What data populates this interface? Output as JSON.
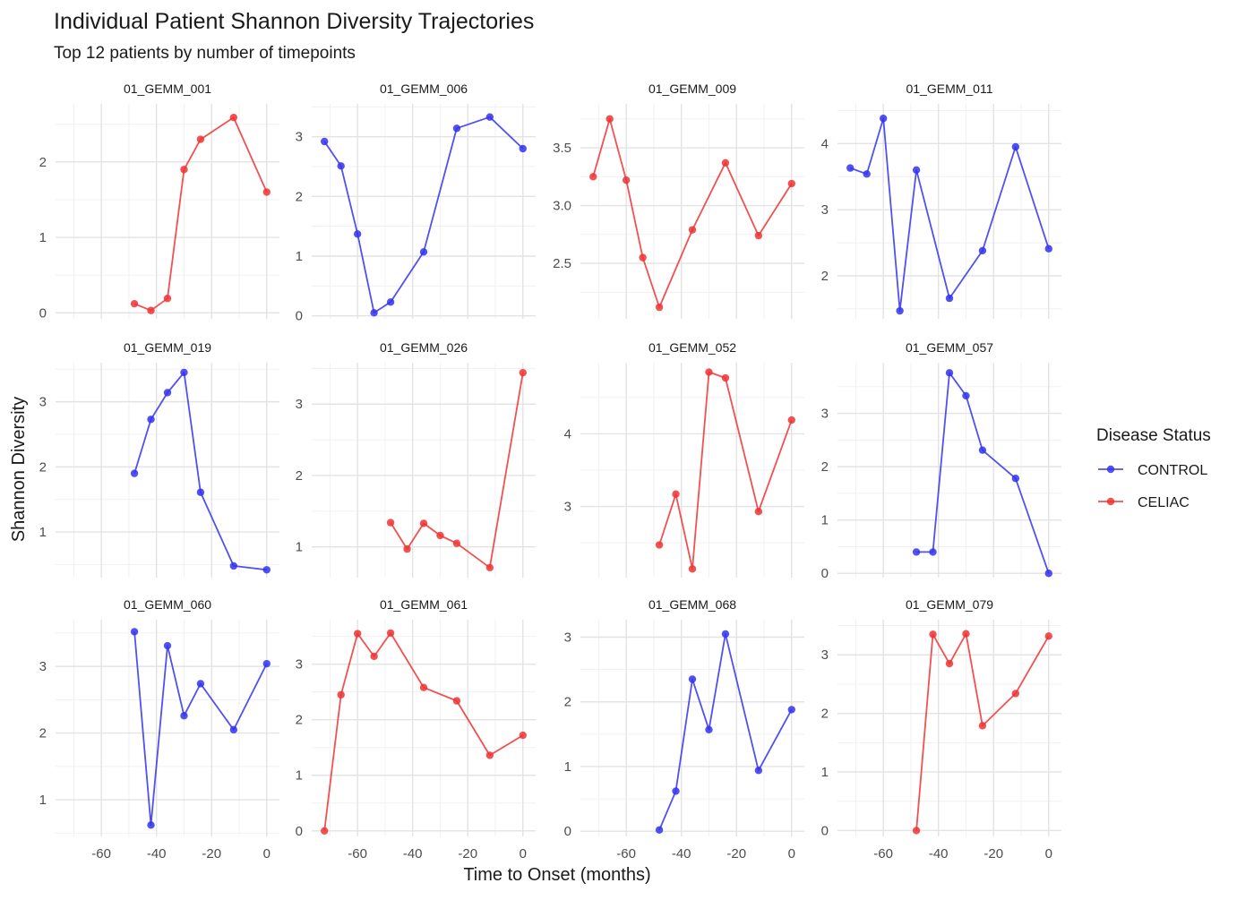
{
  "chart_data": {
    "type": "line",
    "title": "Individual Patient Shannon Diversity Trajectories",
    "subtitle": "Top 12 patients by number of timepoints",
    "xlabel": "Time to Onset (months)",
    "ylabel": "Shannon Diversity",
    "xlim": [
      -75,
      3
    ],
    "xticks": [
      -60,
      -40,
      -20,
      0
    ],
    "grid": true,
    "legend": {
      "title": "Disease Status",
      "position": "right",
      "entries": [
        {
          "label": "CONTROL",
          "color": "#3333ee"
        },
        {
          "label": "CELIAC",
          "color": "#ee3333"
        }
      ]
    },
    "panels": [
      {
        "name": "01_GEMM_001",
        "status": "CELIAC",
        "yticks": [
          0,
          1,
          2
        ],
        "ylim": [
          -0.08,
          2.77
        ],
        "x": [
          -48,
          -42,
          -36,
          -30,
          -24,
          -12,
          0
        ],
        "y": [
          0.12,
          0.03,
          0.19,
          1.9,
          2.3,
          2.59,
          1.6
        ]
      },
      {
        "name": "01_GEMM_006",
        "status": "CONTROL",
        "yticks": [
          0,
          1,
          2,
          3
        ],
        "ylim": [
          -0.05,
          3.55
        ],
        "x": [
          -72,
          -66,
          -60,
          -54,
          -48,
          -36,
          -24,
          -12,
          0
        ],
        "y": [
          2.92,
          2.51,
          1.37,
          0.05,
          0.23,
          1.07,
          3.14,
          3.33,
          2.8
        ]
      },
      {
        "name": "01_GEMM_009",
        "status": "CELIAC",
        "yticks": [
          2.5,
          3.0,
          3.5
        ],
        "ylim": [
          2.02,
          3.88
        ],
        "x": [
          -72,
          -66,
          -60,
          -54,
          -48,
          -36,
          -24,
          -12,
          0
        ],
        "y": [
          3.25,
          3.75,
          3.22,
          2.55,
          2.12,
          2.79,
          3.37,
          2.74,
          3.19
        ]
      },
      {
        "name": "01_GEMM_011",
        "status": "CONTROL",
        "yticks": [
          2,
          3,
          4
        ],
        "ylim": [
          1.35,
          4.6
        ],
        "x": [
          -72,
          -66,
          -60,
          -54,
          -48,
          -36,
          -24,
          -12,
          0
        ],
        "y": [
          3.63,
          3.54,
          4.38,
          1.47,
          3.6,
          1.66,
          2.38,
          3.95,
          2.41
        ]
      },
      {
        "name": "01_GEMM_019",
        "status": "CONTROL",
        "yticks": [
          1,
          2,
          3
        ],
        "ylim": [
          0.3,
          3.6
        ],
        "x": [
          -48,
          -42,
          -36,
          -30,
          -24,
          -12,
          0
        ],
        "y": [
          1.9,
          2.73,
          3.14,
          3.45,
          1.61,
          0.48,
          0.42
        ]
      },
      {
        "name": "01_GEMM_026",
        "status": "CELIAC",
        "yticks": [
          1,
          2,
          3
        ],
        "ylim": [
          0.57,
          3.58
        ],
        "x": [
          -48,
          -42,
          -36,
          -30,
          -24,
          -12,
          0
        ],
        "y": [
          1.34,
          0.97,
          1.33,
          1.16,
          1.05,
          0.71,
          3.44
        ]
      },
      {
        "name": "01_GEMM_052",
        "status": "CELIAC",
        "yticks": [
          3,
          4
        ],
        "ylim": [
          2.02,
          4.98
        ],
        "x": [
          -48,
          -42,
          -36,
          -30,
          -24,
          -12,
          0
        ],
        "y": [
          2.47,
          3.17,
          2.14,
          4.85,
          4.77,
          2.93,
          4.19
        ]
      },
      {
        "name": "01_GEMM_057",
        "status": "CONTROL",
        "yticks": [
          0,
          1,
          2,
          3
        ],
        "ylim": [
          -0.08,
          3.95
        ],
        "x": [
          -48,
          -42,
          -36,
          -30,
          -24,
          -12,
          0
        ],
        "y": [
          0.4,
          0.4,
          3.76,
          3.33,
          2.31,
          1.78,
          0.0
        ]
      },
      {
        "name": "01_GEMM_060",
        "status": "CONTROL",
        "yticks": [
          1,
          2,
          3
        ],
        "ylim": [
          0.45,
          3.7
        ],
        "x": [
          -48,
          -42,
          -36,
          -30,
          -24,
          -12,
          0
        ],
        "y": [
          3.52,
          0.62,
          3.31,
          2.26,
          2.74,
          2.05,
          3.04
        ]
      },
      {
        "name": "01_GEMM_061",
        "status": "CELIAC",
        "yticks": [
          0,
          1,
          2,
          3
        ],
        "ylim": [
          -0.1,
          3.8
        ],
        "x": [
          -72,
          -66,
          -60,
          -54,
          -48,
          -36,
          -24,
          -12,
          0
        ],
        "y": [
          0.0,
          2.45,
          3.55,
          3.14,
          3.56,
          2.58,
          2.34,
          1.36,
          1.72
        ]
      },
      {
        "name": "01_GEMM_068",
        "status": "CONTROL",
        "yticks": [
          0,
          1,
          2,
          3
        ],
        "ylim": [
          -0.08,
          3.27
        ],
        "x": [
          -48,
          -42,
          -36,
          -30,
          -24,
          -12,
          0
        ],
        "y": [
          0.02,
          0.62,
          2.35,
          1.57,
          3.05,
          0.94,
          1.88
        ]
      },
      {
        "name": "01_GEMM_079",
        "status": "CELIAC",
        "yticks": [
          0,
          1,
          2,
          3
        ],
        "ylim": [
          -0.1,
          3.6
        ],
        "x": [
          -48,
          -42,
          -36,
          -30,
          -24,
          -12,
          0
        ],
        "y": [
          0.0,
          3.35,
          2.85,
          3.36,
          1.79,
          2.34,
          3.32
        ]
      }
    ]
  }
}
